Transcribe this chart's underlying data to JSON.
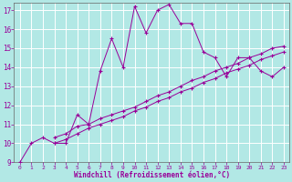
{
  "xlabel": "Windchill (Refroidissement éolien,°C)",
  "bg_color": "#b2e8e5",
  "line_color": "#990099",
  "grid_color": "#c8e8e8",
  "xlim": [
    -0.5,
    23.5
  ],
  "ylim": [
    9,
    17.4
  ],
  "xticks": [
    0,
    1,
    2,
    3,
    4,
    5,
    6,
    7,
    8,
    9,
    10,
    11,
    12,
    13,
    14,
    15,
    16,
    17,
    18,
    19,
    20,
    21,
    22,
    23
  ],
  "yticks": [
    9,
    10,
    11,
    12,
    13,
    14,
    15,
    16,
    17
  ],
  "line1_x": [
    0,
    1,
    2,
    3,
    4,
    5,
    6,
    7,
    8,
    9,
    10,
    11,
    12,
    13,
    14,
    15,
    16,
    17,
    18,
    19,
    20,
    21,
    22,
    23
  ],
  "line1_y": [
    9.0,
    10.0,
    10.3,
    10.0,
    10.0,
    11.5,
    11.0,
    13.8,
    15.5,
    14.0,
    17.2,
    15.8,
    17.0,
    17.3,
    16.3,
    16.3,
    14.8,
    14.5,
    13.5,
    14.5,
    14.5,
    13.8,
    13.5,
    14.0
  ],
  "line2_x": [
    3,
    4,
    5,
    6,
    7,
    8,
    9,
    10,
    11,
    12,
    13,
    14,
    15,
    16,
    17,
    18,
    19,
    20,
    21,
    22,
    23
  ],
  "line2_y": [
    10.3,
    10.5,
    10.9,
    11.0,
    11.3,
    11.5,
    11.7,
    11.9,
    12.2,
    12.5,
    12.7,
    13.0,
    13.3,
    13.5,
    13.8,
    14.0,
    14.2,
    14.5,
    14.7,
    15.0,
    15.1
  ],
  "line3_x": [
    3,
    4,
    5,
    6,
    7,
    8,
    9,
    10,
    11,
    12,
    13,
    14,
    15,
    16,
    17,
    18,
    19,
    20,
    21,
    22,
    23
  ],
  "line3_y": [
    10.0,
    10.2,
    10.5,
    10.8,
    11.0,
    11.2,
    11.4,
    11.7,
    11.9,
    12.2,
    12.4,
    12.7,
    12.9,
    13.2,
    13.4,
    13.7,
    13.9,
    14.1,
    14.4,
    14.6,
    14.8
  ]
}
